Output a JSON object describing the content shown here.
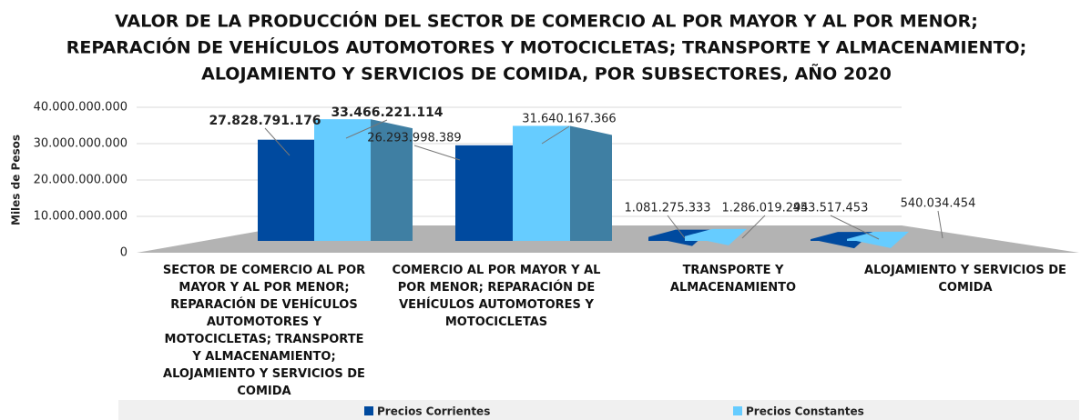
{
  "chart_data": {
    "type": "bar3d",
    "title": [
      "VALOR DE LA PRODUCCIÓN DEL SECTOR DE COMERCIO AL POR MAYOR Y AL POR MENOR;",
      "REPARACIÓN DE VEHÍCULOS AUTOMOTORES Y MOTOCICLETAS; TRANSPORTE Y ALMACENAMIENTO;",
      "ALOJAMIENTO Y SERVICIOS DE COMIDA, POR SUBSECTORES, AÑO 2020"
    ],
    "y_label": "Miles de Pesos",
    "categories": [
      "SECTOR DE COMERCIO AL POR MAYOR Y AL POR MENOR; REPARACIÓN DE VEHÍCULOS AUTOMOTORES Y MOTOCICLETAS; TRANSPORTE Y ALMACENAMIENTO; ALOJAMIENTO Y SERVICIOS DE COMIDA",
      "COMERCIO AL POR MAYOR Y AL POR MENOR; REPARACIÓN DE VEHÍCULOS AUTOMOTORES Y MOTOCICLETAS",
      "TRANSPORTE Y ALMACENAMIENTO",
      "ALOJAMIENTO Y SERVICIOS DE COMIDA"
    ],
    "series": [
      {
        "name": "Precios Corrientes",
        "color": "#004a9f",
        "values": [
          27828791176,
          26293998389,
          1081275333,
          453517453
        ],
        "value_labels": [
          "27.828.791.176",
          "26.293.998.389",
          "1.081.275.333",
          "453.517.453"
        ]
      },
      {
        "name": "Precios Constantes",
        "color": "#66ccff",
        "values": [
          33466221114,
          31640167366,
          1286019294,
          540034454
        ],
        "value_labels": [
          "33.466.221.114",
          "31.640.167.366",
          "1.286.019.294",
          "540.034.454"
        ]
      }
    ],
    "ylim": [
      0,
      40000000000
    ],
    "yticks": [
      0,
      {
        "value": 10000000000,
        "label": "10.000.000.000"
      },
      {
        "value": 20000000000,
        "label": "20.000.000.000"
      },
      {
        "value": 30000000000,
        "label": "30.000.000.000"
      },
      {
        "value": 40000000000,
        "label": "40.000.000.000"
      }
    ],
    "grid": true
  }
}
